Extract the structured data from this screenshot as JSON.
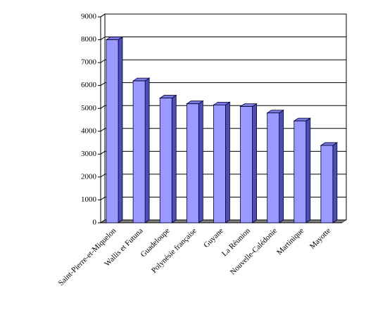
{
  "chart_data": {
    "type": "bar3d",
    "categories": [
      "Saint-Pierre-et-Miquelon",
      "Wallis et Futuna",
      "Guadeloupe",
      "Polynésie française",
      "Guyane",
      "La Réunion",
      "Nouvelle-Calédonie",
      "Martinique",
      "Mayotte"
    ],
    "values": [
      8000,
      6200,
      5450,
      5200,
      5150,
      5080,
      4800,
      4450,
      3380
    ],
    "color": "#9999ff",
    "ylim": [
      0,
      9000
    ],
    "yticks": [
      0,
      1000,
      2000,
      3000,
      4000,
      5000,
      6000,
      7000,
      8000,
      9000
    ],
    "grid": true
  }
}
